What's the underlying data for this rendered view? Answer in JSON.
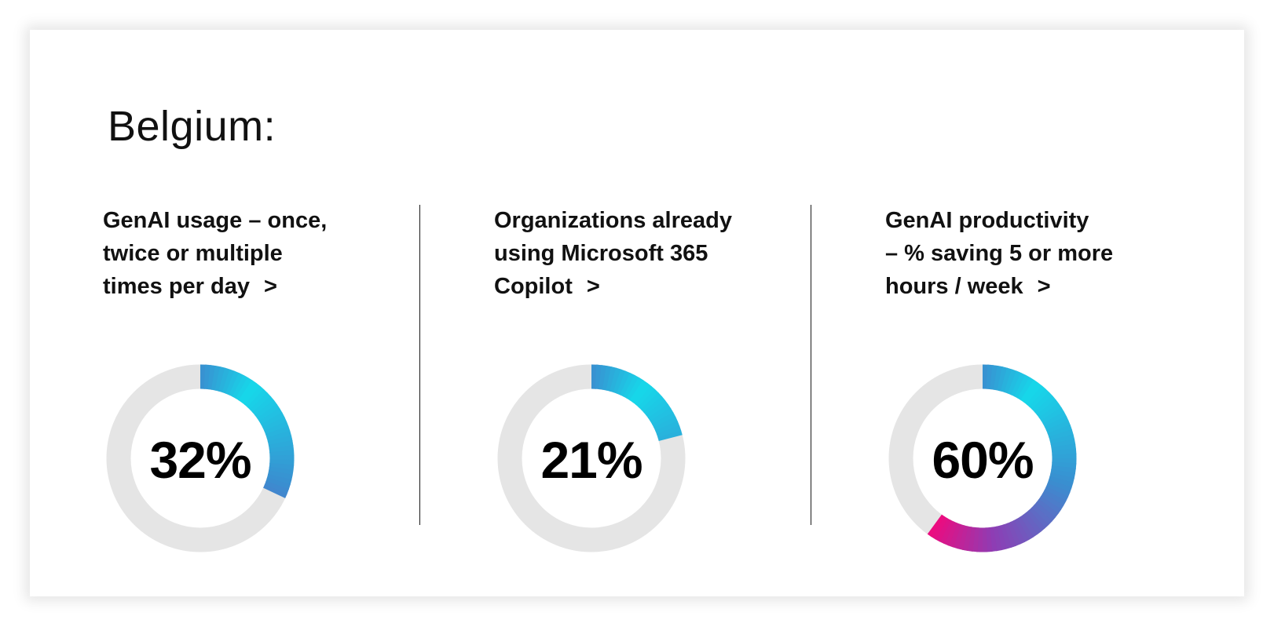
{
  "page": {
    "title": "Belgium:"
  },
  "colors": {
    "track": "#e5e5e5",
    "gradient_cyan": "#16d8ea",
    "gradient_blue": "#3a8ed0",
    "gradient_purple": "#8e3db4",
    "gradient_magenta": "#ee0a7e",
    "text": "#111111"
  },
  "metrics": [
    {
      "label_lines": [
        "GenAI usage – once,",
        "twice or multiple",
        "times per day"
      ],
      "chevron": ">",
      "value_text": "32%"
    },
    {
      "label_lines": [
        "Organizations already",
        "using Microsoft 365",
        "Copilot"
      ],
      "chevron": ">",
      "value_text": "21%"
    },
    {
      "label_lines": [
        "GenAI productivity",
        "–  % saving 5 or more",
        "hours / week"
      ],
      "chevron": ">",
      "value_text": "60%"
    }
  ],
  "chart_data": [
    {
      "type": "pie",
      "variant": "donut",
      "value": 32,
      "max": 100
    },
    {
      "type": "pie",
      "variant": "donut",
      "value": 21,
      "max": 100
    },
    {
      "type": "pie",
      "variant": "donut",
      "value": 60,
      "max": 100
    }
  ]
}
